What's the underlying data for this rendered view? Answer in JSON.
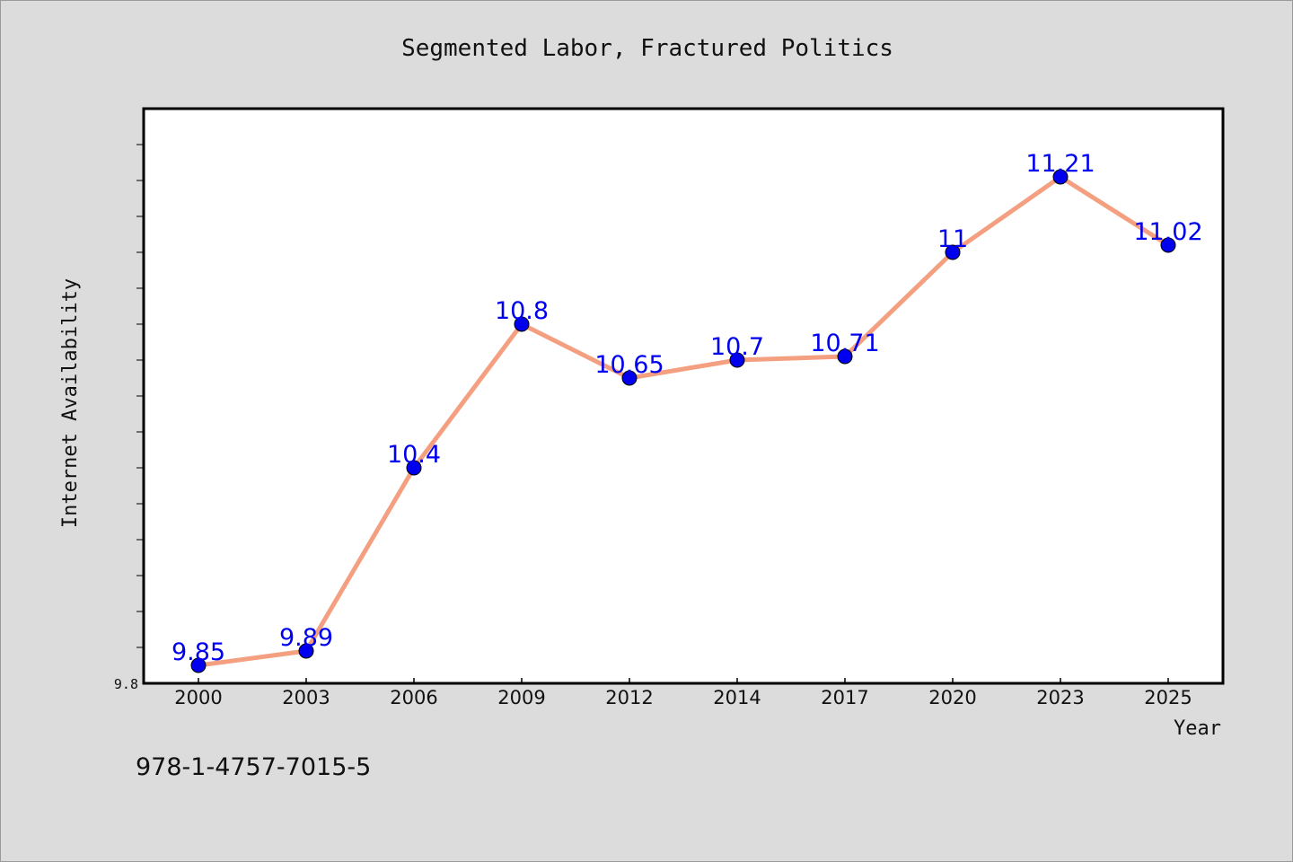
{
  "chart_data": {
    "type": "line",
    "title": "Segmented Labor, Fractured Politics",
    "xlabel": "Year",
    "ylabel": "Internet Availability",
    "categories": [
      "2000",
      "2003",
      "2006",
      "2009",
      "2012",
      "2014",
      "2017",
      "2020",
      "2023",
      "2025"
    ],
    "series": [
      {
        "values": [
          9.85,
          9.89,
          10.4,
          10.8,
          10.65,
          10.7,
          10.71,
          11,
          11.21,
          11.02
        ],
        "data_labels": [
          "9.85",
          "9.89",
          "10.4",
          "10.8",
          "10.65",
          "10.7",
          "10.71",
          "11",
          "11.21",
          "11.02"
        ],
        "line_color": "#f4a080",
        "marker_color": "#0000ee"
      }
    ],
    "ylim": [
      9.8,
      11.4
    ],
    "ytick_labels": [
      {
        "value": 9.8,
        "label": "9.8"
      }
    ],
    "yminor_step": 0.1,
    "grid": false,
    "legend": "none",
    "label_color": "#0000ee"
  },
  "footer": {
    "isbn": "978-1-4757-7015-5"
  },
  "colors": {
    "background": "#dcdcdc",
    "plot_background": "#ffffff",
    "frame": "#000000"
  }
}
